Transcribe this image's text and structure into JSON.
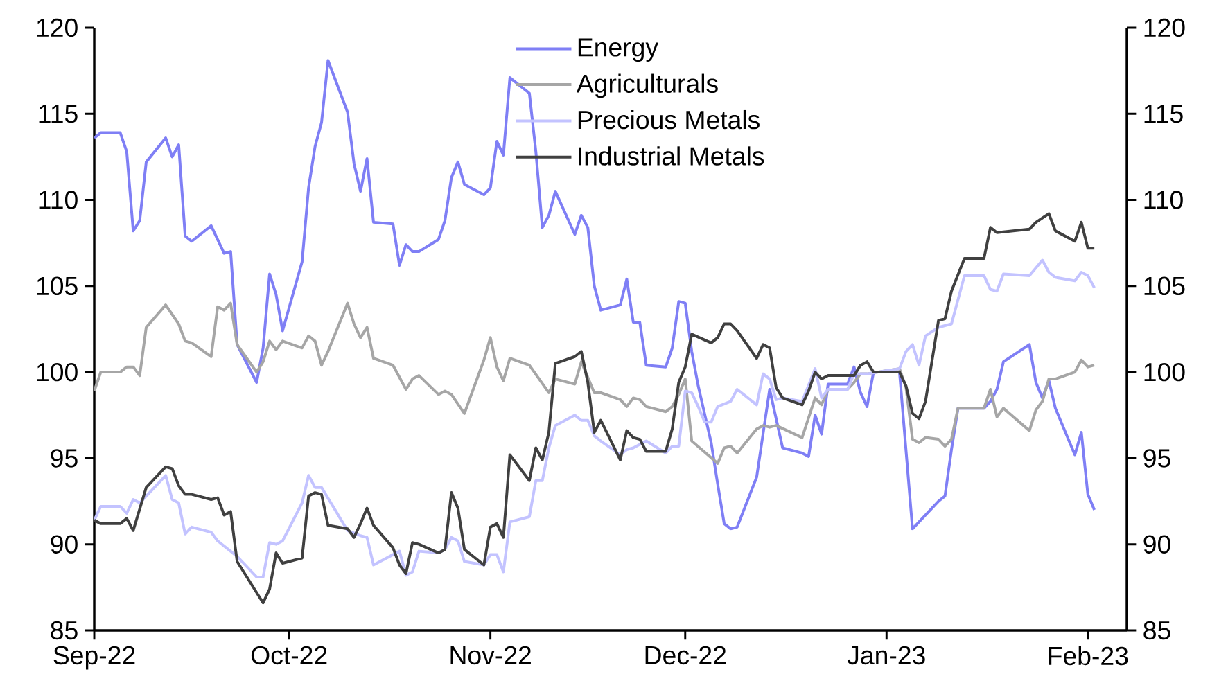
{
  "chart_data": {
    "type": "line",
    "legend": "top",
    "xlim": [
      "2022-09-01",
      "2023-02-07"
    ],
    "ylim": [
      85,
      120
    ],
    "y2lim": [
      85,
      120
    ],
    "xticks": [
      {
        "value": "2022-09-01",
        "label": "Sep-22"
      },
      {
        "value": "2022-10-01",
        "label": "Oct-22"
      },
      {
        "value": "2022-11-01",
        "label": "Nov-22"
      },
      {
        "value": "2022-12-01",
        "label": "Dec-22"
      },
      {
        "value": "2023-01-01",
        "label": "Jan-23"
      },
      {
        "value": "2023-02-01",
        "label": "Feb-23"
      }
    ],
    "yticks": [
      85,
      90,
      95,
      100,
      105,
      110,
      115,
      120
    ],
    "y2ticks": [
      85,
      90,
      95,
      100,
      105,
      110,
      115,
      120
    ],
    "series": [
      {
        "name": "Energy",
        "color": "#7f7ff5",
        "x": [
          "2022-09-01",
          "2022-09-02",
          "2022-09-05",
          "2022-09-06",
          "2022-09-07",
          "2022-09-08",
          "2022-09-09",
          "2022-09-12",
          "2022-09-13",
          "2022-09-14",
          "2022-09-15",
          "2022-09-16",
          "2022-09-19",
          "2022-09-21",
          "2022-09-22",
          "2022-09-23",
          "2022-09-26",
          "2022-09-27",
          "2022-09-28",
          "2022-09-29",
          "2022-09-30",
          "2022-10-03",
          "2022-10-04",
          "2022-10-05",
          "2022-10-06",
          "2022-10-07",
          "2022-10-10",
          "2022-10-11",
          "2022-10-12",
          "2022-10-13",
          "2022-10-14",
          "2022-10-17",
          "2022-10-18",
          "2022-10-19",
          "2022-10-20",
          "2022-10-21",
          "2022-10-24",
          "2022-10-25",
          "2022-10-26",
          "2022-10-27",
          "2022-10-28",
          "2022-10-31",
          "2022-11-01",
          "2022-11-02",
          "2022-11-03",
          "2022-11-04",
          "2022-11-07",
          "2022-11-08",
          "2022-11-09",
          "2022-11-10",
          "2022-11-11",
          "2022-11-14",
          "2022-11-15",
          "2022-11-16",
          "2022-11-17",
          "2022-11-18",
          "2022-11-21",
          "2022-11-22",
          "2022-11-23",
          "2022-11-24",
          "2022-11-25",
          "2022-11-28",
          "2022-11-29",
          "2022-11-30",
          "2022-12-01",
          "2022-12-02",
          "2022-12-03",
          "2022-12-05",
          "2022-12-06",
          "2022-12-07",
          "2022-12-08",
          "2022-12-09",
          "2022-12-12",
          "2022-12-14",
          "2022-12-16",
          "2022-12-19",
          "2022-12-20",
          "2022-12-21",
          "2022-12-22",
          "2022-12-23",
          "2022-12-26",
          "2022-12-27",
          "2022-12-28",
          "2022-12-29",
          "2022-12-30",
          "2023-01-03",
          "2023-01-05",
          "2023-01-06",
          "2023-01-09",
          "2023-01-10",
          "2023-01-11",
          "2023-01-12",
          "2023-01-16",
          "2023-01-17",
          "2023-01-18",
          "2023-01-19",
          "2023-01-23",
          "2023-01-24",
          "2023-01-25",
          "2023-01-26",
          "2023-01-27",
          "2023-01-30",
          "2023-01-31",
          "2023-02-01",
          "2023-02-02"
        ],
        "values": [
          113.6,
          113.9,
          113.9,
          112.8,
          108.2,
          108.8,
          112.2,
          113.6,
          112.5,
          113.2,
          107.9,
          107.6,
          108.5,
          106.9,
          107.0,
          101.6,
          99.4,
          101.4,
          105.7,
          104.5,
          102.4,
          106.4,
          110.7,
          113.1,
          114.5,
          118.1,
          115.1,
          112.1,
          110.5,
          112.4,
          108.7,
          108.6,
          106.2,
          107.4,
          107.0,
          107.0,
          107.7,
          108.8,
          111.3,
          112.2,
          110.9,
          110.3,
          110.7,
          113.4,
          112.6,
          117.1,
          116.2,
          112.8,
          108.4,
          109.1,
          110.5,
          108.0,
          109.1,
          108.4,
          105.0,
          103.6,
          103.9,
          105.4,
          102.9,
          102.9,
          100.4,
          100.3,
          101.4,
          104.1,
          104.0,
          101.2,
          99.2,
          95.9,
          93.5,
          91.2,
          90.9,
          91.0,
          93.9,
          99.0,
          95.6,
          95.3,
          95.1,
          97.5,
          96.4,
          99.3,
          99.3,
          100.3,
          98.8,
          98.0,
          100.0,
          100.0,
          90.9,
          91.3,
          92.5,
          92.8,
          95.5,
          97.9,
          97.9,
          98.3,
          99.0,
          100.6,
          101.6,
          99.4,
          98.5,
          99.5,
          97.9,
          95.2,
          96.5,
          92.9,
          92.0
        ]
      },
      {
        "name": "Agriculturals",
        "color": "#a6a6a6",
        "x": [
          "2022-09-01",
          "2022-09-02",
          "2022-09-05",
          "2022-09-06",
          "2022-09-07",
          "2022-09-08",
          "2022-09-09",
          "2022-09-12",
          "2022-09-14",
          "2022-09-15",
          "2022-09-16",
          "2022-09-19",
          "2022-09-20",
          "2022-09-21",
          "2022-09-22",
          "2022-09-23",
          "2022-09-26",
          "2022-09-27",
          "2022-09-28",
          "2022-09-29",
          "2022-09-30",
          "2022-10-03",
          "2022-10-04",
          "2022-10-05",
          "2022-10-06",
          "2022-10-07",
          "2022-10-10",
          "2022-10-11",
          "2022-10-12",
          "2022-10-13",
          "2022-10-14",
          "2022-10-17",
          "2022-10-19",
          "2022-10-20",
          "2022-10-21",
          "2022-10-24",
          "2022-10-25",
          "2022-10-26",
          "2022-10-28",
          "2022-10-31",
          "2022-11-01",
          "2022-11-02",
          "2022-11-03",
          "2022-11-04",
          "2022-11-07",
          "2022-11-10",
          "2022-11-11",
          "2022-11-14",
          "2022-11-15",
          "2022-11-17",
          "2022-11-18",
          "2022-11-21",
          "2022-11-22",
          "2022-11-23",
          "2022-11-24",
          "2022-11-25",
          "2022-11-28",
          "2022-11-29",
          "2022-11-30",
          "2022-12-01",
          "2022-12-02",
          "2022-12-06",
          "2022-12-07",
          "2022-12-08",
          "2022-12-09",
          "2022-12-12",
          "2022-12-13",
          "2022-12-14",
          "2022-12-15",
          "2022-12-19",
          "2022-12-21",
          "2022-12-22",
          "2022-12-23",
          "2022-12-26",
          "2022-12-27",
          "2022-12-28",
          "2022-12-29",
          "2023-01-03",
          "2023-01-04",
          "2023-01-05",
          "2023-01-06",
          "2023-01-07",
          "2023-01-09",
          "2023-01-10",
          "2023-01-11",
          "2023-01-12",
          "2023-01-16",
          "2023-01-17",
          "2023-01-18",
          "2023-01-19",
          "2023-01-23",
          "2023-01-24",
          "2023-01-25",
          "2023-01-26",
          "2023-01-27",
          "2023-01-30",
          "2023-01-31",
          "2023-02-01",
          "2023-02-02"
        ],
        "values": [
          98.9,
          100.0,
          100.0,
          100.3,
          100.3,
          99.8,
          102.6,
          103.9,
          102.8,
          101.8,
          101.7,
          100.9,
          103.8,
          103.6,
          104.0,
          101.6,
          100.0,
          100.6,
          101.8,
          101.3,
          101.8,
          101.4,
          102.1,
          101.8,
          100.4,
          101.2,
          104.0,
          102.8,
          102.0,
          102.6,
          100.8,
          100.4,
          99.0,
          99.6,
          99.8,
          98.7,
          98.9,
          98.7,
          97.6,
          100.7,
          102.0,
          100.3,
          99.5,
          100.8,
          100.4,
          98.8,
          99.6,
          99.3,
          100.6,
          98.8,
          98.8,
          98.4,
          98.0,
          98.5,
          98.4,
          98.0,
          97.7,
          98.0,
          98.7,
          99.6,
          96.0,
          94.7,
          95.6,
          95.7,
          95.3,
          96.7,
          96.9,
          96.8,
          96.9,
          96.2,
          98.5,
          98.1,
          99.0,
          99.0,
          99.4,
          99.9,
          99.9,
          100.2,
          99.1,
          96.1,
          95.9,
          96.2,
          96.1,
          95.7,
          96.1,
          97.9,
          97.9,
          99.0,
          97.4,
          97.9,
          96.6,
          97.8,
          98.3,
          99.6,
          99.6,
          100.0,
          100.7,
          100.3,
          100.4
        ]
      },
      {
        "name": "Precious Metals",
        "color": "#c3c3ff",
        "x": [
          "2022-09-01",
          "2022-09-02",
          "2022-09-05",
          "2022-09-06",
          "2022-09-07",
          "2022-09-08",
          "2022-09-12",
          "2022-09-13",
          "2022-09-14",
          "2022-09-15",
          "2022-09-16",
          "2022-09-19",
          "2022-09-20",
          "2022-09-23",
          "2022-09-26",
          "2022-09-27",
          "2022-09-28",
          "2022-09-29",
          "2022-09-30",
          "2022-10-03",
          "2022-10-04",
          "2022-10-05",
          "2022-10-06",
          "2022-10-10",
          "2022-10-12",
          "2022-10-13",
          "2022-10-14",
          "2022-10-18",
          "2022-10-19",
          "2022-10-20",
          "2022-10-21",
          "2022-10-24",
          "2022-10-25",
          "2022-10-26",
          "2022-10-27",
          "2022-10-28",
          "2022-10-31",
          "2022-11-01",
          "2022-11-02",
          "2022-11-03",
          "2022-11-04",
          "2022-11-07",
          "2022-11-08",
          "2022-11-09",
          "2022-11-10",
          "2022-11-11",
          "2022-11-14",
          "2022-11-15",
          "2022-11-16",
          "2022-11-17",
          "2022-11-18",
          "2022-11-21",
          "2022-11-22",
          "2022-11-23",
          "2022-11-25",
          "2022-11-28",
          "2022-11-29",
          "2022-11-30",
          "2022-12-01",
          "2022-12-02",
          "2022-12-03",
          "2022-12-04",
          "2022-12-05",
          "2022-12-06",
          "2022-12-08",
          "2022-12-09",
          "2022-12-12",
          "2022-12-13",
          "2022-12-14",
          "2022-12-15",
          "2022-12-16",
          "2022-12-19",
          "2022-12-21",
          "2022-12-22",
          "2022-12-23",
          "2022-12-26",
          "2022-12-27",
          "2022-12-29",
          "2023-01-03",
          "2023-01-04",
          "2023-01-05",
          "2023-01-06",
          "2023-01-07",
          "2023-01-09",
          "2023-01-11",
          "2023-01-13",
          "2023-01-16",
          "2023-01-17",
          "2023-01-18",
          "2023-01-19",
          "2023-01-23",
          "2023-01-25",
          "2023-01-26",
          "2023-01-27",
          "2023-01-30",
          "2023-01-31",
          "2023-02-01",
          "2023-02-02"
        ],
        "values": [
          91.4,
          92.2,
          92.2,
          91.8,
          92.6,
          92.4,
          94.0,
          92.6,
          92.4,
          90.6,
          91.0,
          90.7,
          90.2,
          89.3,
          88.1,
          88.1,
          90.1,
          90.0,
          90.2,
          92.4,
          94.0,
          93.3,
          93.3,
          90.8,
          90.5,
          90.4,
          88.8,
          89.6,
          88.2,
          88.4,
          89.6,
          89.5,
          89.7,
          90.4,
          90.2,
          89.0,
          88.8,
          89.4,
          89.4,
          88.4,
          91.3,
          91.6,
          93.7,
          93.7,
          95.6,
          96.9,
          97.5,
          97.2,
          97.2,
          96.3,
          96.0,
          95.2,
          95.5,
          95.6,
          96.0,
          95.3,
          95.7,
          95.7,
          98.9,
          98.8,
          98.0,
          97.1,
          97.1,
          98.0,
          98.3,
          99.0,
          98.1,
          99.9,
          99.6,
          98.4,
          98.5,
          98.3,
          100.2,
          98.5,
          99.0,
          99.0,
          99.9,
          99.9,
          100.2,
          101.2,
          101.6,
          100.4,
          102.1,
          102.6,
          102.8,
          105.6,
          105.6,
          104.8,
          104.7,
          105.7,
          105.6,
          106.5,
          105.8,
          105.5,
          105.3,
          105.8,
          105.6,
          104.9
        ]
      },
      {
        "name": "Industrial Metals",
        "color": "#404040",
        "x": [
          "2022-09-01",
          "2022-09-02",
          "2022-09-05",
          "2022-09-06",
          "2022-09-07",
          "2022-09-09",
          "2022-09-12",
          "2022-09-13",
          "2022-09-14",
          "2022-09-15",
          "2022-09-16",
          "2022-09-19",
          "2022-09-20",
          "2022-09-21",
          "2022-09-22",
          "2022-09-23",
          "2022-09-27",
          "2022-09-28",
          "2022-09-29",
          "2022-09-30",
          "2022-10-03",
          "2022-10-04",
          "2022-10-05",
          "2022-10-06",
          "2022-10-07",
          "2022-10-10",
          "2022-10-11",
          "2022-10-12",
          "2022-10-13",
          "2022-10-14",
          "2022-10-17",
          "2022-10-18",
          "2022-10-19",
          "2022-10-20",
          "2022-10-21",
          "2022-10-24",
          "2022-10-25",
          "2022-10-26",
          "2022-10-27",
          "2022-10-28",
          "2022-10-31",
          "2022-11-01",
          "2022-11-02",
          "2022-11-03",
          "2022-11-04",
          "2022-11-07",
          "2022-11-08",
          "2022-11-09",
          "2022-11-10",
          "2022-11-11",
          "2022-11-14",
          "2022-11-15",
          "2022-11-16",
          "2022-11-17",
          "2022-11-18",
          "2022-11-21",
          "2022-11-22",
          "2022-11-23",
          "2022-11-24",
          "2022-11-25",
          "2022-11-28",
          "2022-11-29",
          "2022-11-30",
          "2022-12-01",
          "2022-12-02",
          "2022-12-05",
          "2022-12-06",
          "2022-12-07",
          "2022-12-08",
          "2022-12-09",
          "2022-12-12",
          "2022-12-13",
          "2022-12-14",
          "2022-12-15",
          "2022-12-16",
          "2022-12-19",
          "2022-12-20",
          "2022-12-21",
          "2022-12-22",
          "2022-12-23",
          "2022-12-27",
          "2022-12-28",
          "2022-12-29",
          "2022-12-30",
          "2023-01-03",
          "2023-01-04",
          "2023-01-05",
          "2023-01-06",
          "2023-01-07",
          "2023-01-09",
          "2023-01-10",
          "2023-01-11",
          "2023-01-13",
          "2023-01-16",
          "2023-01-17",
          "2023-01-18",
          "2023-01-23",
          "2023-01-24",
          "2023-01-26",
          "2023-01-27",
          "2023-01-30",
          "2023-01-31",
          "2023-02-01",
          "2023-02-02"
        ],
        "values": [
          91.4,
          91.2,
          91.2,
          91.5,
          90.8,
          93.3,
          94.5,
          94.4,
          93.4,
          92.9,
          92.9,
          92.6,
          92.7,
          91.7,
          91.9,
          89.0,
          86.6,
          87.4,
          89.5,
          88.9,
          89.2,
          92.8,
          93.0,
          92.9,
          91.1,
          90.9,
          90.4,
          91.2,
          92.1,
          91.1,
          89.8,
          88.8,
          88.3,
          90.1,
          90.0,
          89.5,
          89.7,
          93.0,
          92.1,
          89.7,
          88.8,
          91.0,
          91.2,
          90.4,
          95.2,
          93.7,
          95.6,
          94.9,
          96.5,
          100.5,
          100.9,
          101.2,
          99.4,
          96.5,
          97.2,
          94.9,
          96.6,
          96.2,
          96.1,
          95.4,
          95.4,
          96.7,
          99.4,
          100.3,
          102.2,
          101.7,
          102.0,
          102.8,
          102.8,
          102.4,
          100.8,
          101.6,
          101.4,
          99.1,
          98.5,
          98.1,
          98.9,
          100.0,
          99.6,
          99.8,
          99.8,
          100.4,
          100.6,
          100.0,
          100.0,
          99.2,
          97.6,
          97.3,
          98.3,
          103.0,
          103.1,
          104.7,
          106.6,
          106.6,
          108.4,
          108.1,
          108.3,
          108.7,
          109.2,
          108.2,
          107.6,
          108.7,
          107.2,
          107.2
        ]
      }
    ]
  }
}
